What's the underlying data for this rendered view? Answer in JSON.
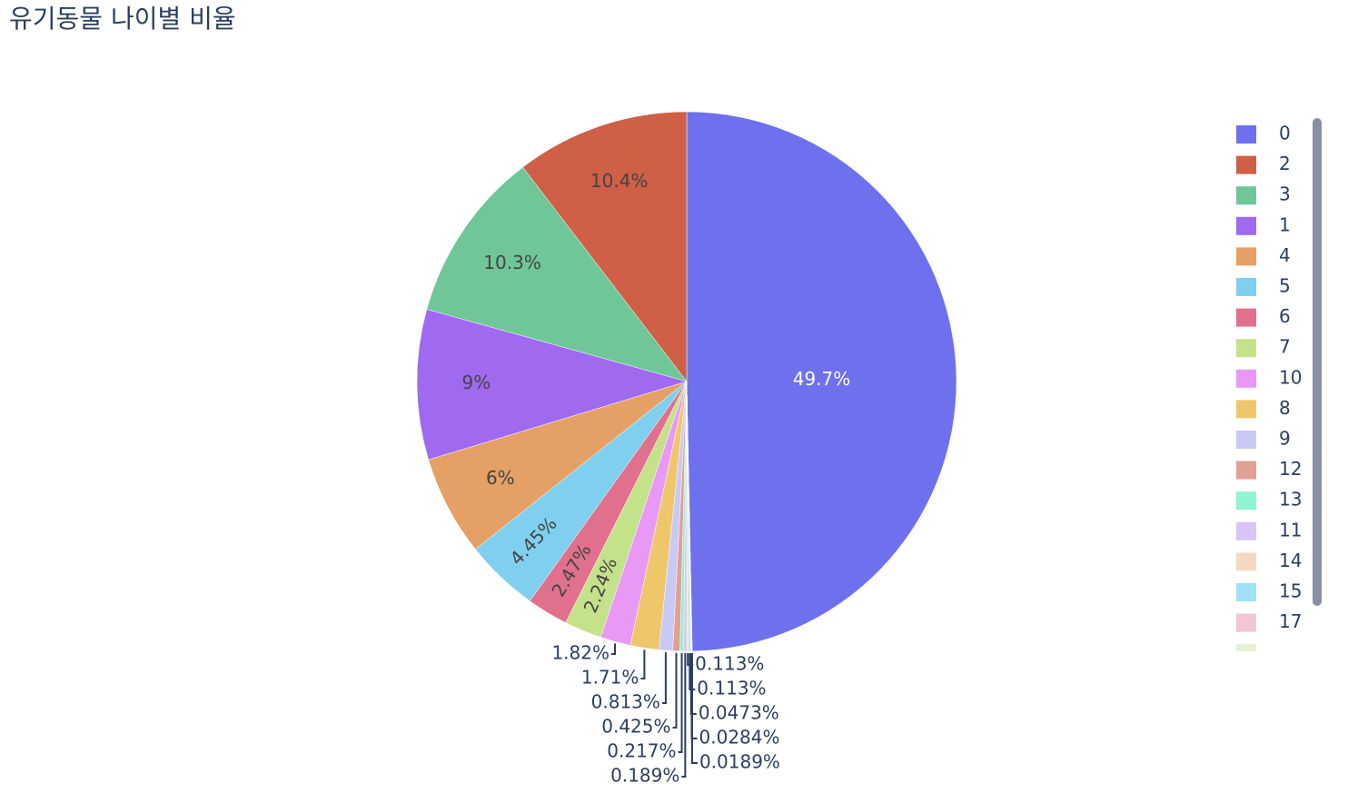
{
  "chart_data": {
    "type": "pie",
    "title": "유기동물 나이별 비율",
    "categories": [
      "0",
      "2",
      "3",
      "1",
      "4",
      "5",
      "6",
      "7",
      "10",
      "8",
      "9",
      "12",
      "13",
      "11",
      "14",
      "15",
      "17",
      null,
      null
    ],
    "values": [
      49.7,
      10.4,
      10.3,
      9,
      6,
      4.45,
      2.47,
      2.24,
      1.82,
      1.71,
      0.813,
      0.425,
      0.217,
      0.189,
      0.113,
      0.113,
      0.0473,
      0.0284,
      0.0189
    ],
    "value_labels": [
      "49.7%",
      "10.4%",
      "10.3%",
      "9%",
      "6%",
      "4.45%",
      "2.47%",
      "2.24%",
      "1.82%",
      "1.71%",
      "0.813%",
      "0.425%",
      "0.217%",
      "0.189%",
      "0.113%",
      "0.113%",
      "0.0473%",
      "0.0284%",
      "0.0189%"
    ],
    "colors": [
      "#6e70ee",
      "#cf5f46",
      "#6fc797",
      "#9f69f0",
      "#e5a066",
      "#7ed0ee",
      "#e0708c",
      "#c4e28a",
      "#e899f6",
      "#eec76a",
      "#c8c9f5",
      "#e0a193",
      "#8ff4d0",
      "#d8c4f7",
      "#f6d8c0",
      "#a0e1f5",
      "#f3c6d6",
      "#e3f2d0",
      "#f0e0b0"
    ]
  }
}
